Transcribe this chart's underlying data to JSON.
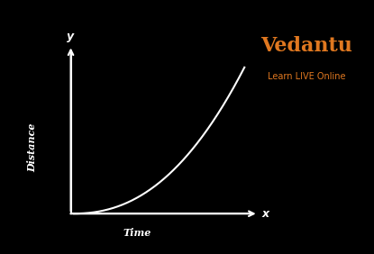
{
  "background_color": "#000000",
  "curve_color": "#ffffff",
  "axis_color": "#ffffff",
  "label_color": "#ffffff",
  "ylabel": "Distance",
  "xlabel": "Time",
  "x_axis_end_label": "x",
  "y_axis_end_label": "y",
  "vedantu_text": "Vedantu",
  "vedantu_subtext": "Learn LIVE Online",
  "vedantu_color": "#e07820",
  "figsize": [
    4.15,
    2.82
  ],
  "dpi": 100
}
